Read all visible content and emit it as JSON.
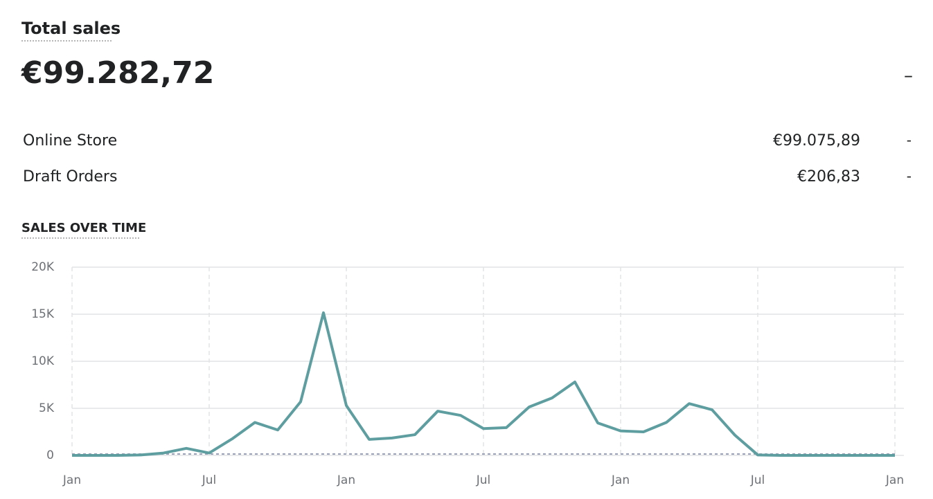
{
  "header": {
    "title": "Total sales",
    "total": "€99.282,72",
    "change": "–"
  },
  "breakdown": [
    {
      "label": "Online Store",
      "value": "€99.075,89",
      "change": "-"
    },
    {
      "label": "Draft Orders",
      "value": "€206,83",
      "change": "-"
    }
  ],
  "chart_data": {
    "type": "line",
    "title": "SALES OVER TIME",
    "categories": [
      "Jan",
      null,
      null,
      null,
      null,
      null,
      "Jul",
      null,
      null,
      null,
      null,
      null,
      "Jan",
      null,
      null,
      null,
      null,
      null,
      "Jul",
      null,
      null,
      null,
      null,
      null,
      "Jan",
      null,
      null,
      null,
      null,
      null,
      "Jul",
      null,
      null,
      null,
      null,
      null,
      "Jan"
    ],
    "series": [
      {
        "color": "#5f9ea0",
        "values": [
          0,
          0,
          0,
          50,
          250,
          750,
          250,
          1750,
          3500,
          2700,
          5700,
          15150,
          5300,
          1700,
          1850,
          2200,
          4700,
          4250,
          2850,
          2950,
          5150,
          6100,
          7800,
          3450,
          2600,
          2500,
          3500,
          5500,
          4850,
          2150,
          50,
          0,
          0,
          0,
          0,
          0,
          0
        ]
      },
      {
        "color": "#9aa0b5",
        "dash": true,
        "values": [
          150,
          150,
          150,
          150,
          150,
          150,
          150,
          150,
          150,
          150,
          150,
          150,
          150,
          150,
          150,
          150,
          150,
          150,
          150,
          150,
          150,
          150,
          150,
          150,
          150,
          150,
          150,
          150,
          150,
          150,
          150,
          150,
          150,
          150,
          150,
          150,
          150
        ]
      }
    ],
    "ylim": [
      0,
      20000
    ],
    "yticks": [
      0,
      {
        "value": 5000,
        "label": "5K"
      },
      {
        "value": 10000,
        "label": "10K"
      },
      {
        "value": 15000,
        "label": "15K"
      },
      {
        "value": 20000,
        "label": "20K"
      }
    ],
    "grid": true
  }
}
